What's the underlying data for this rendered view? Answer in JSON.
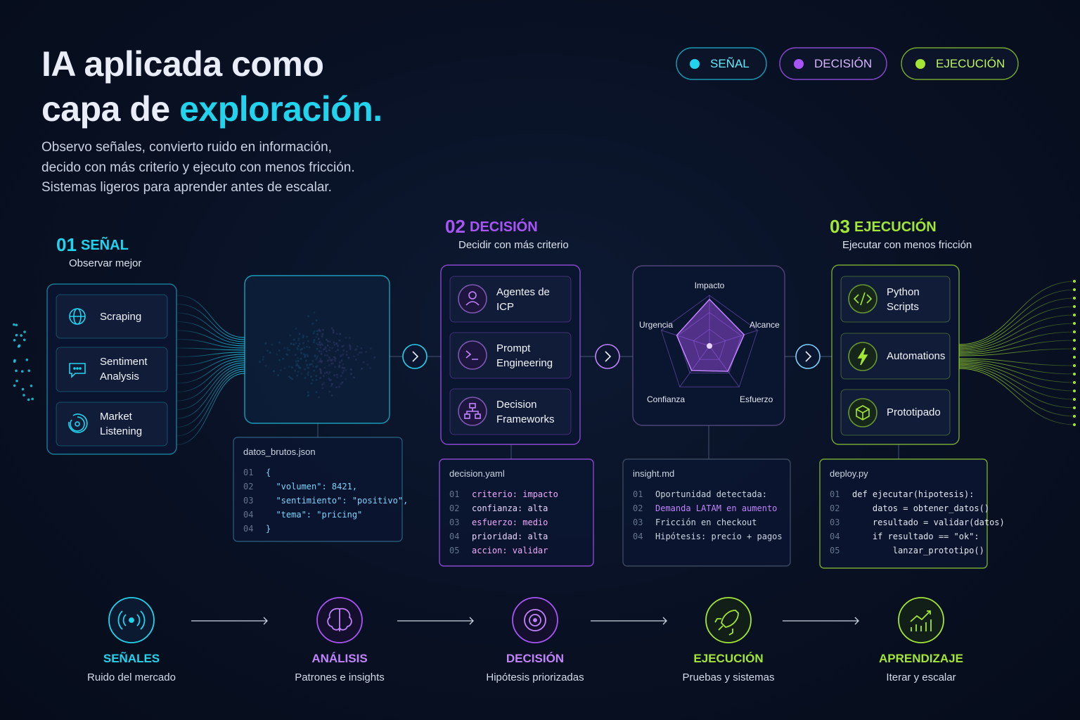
{
  "header": {
    "title_line1": "IA aplicada como",
    "title_line2": "capa de",
    "title_highlight": "exploración.",
    "subtitle": [
      "Observo señales, convierto ruido en información,",
      "decido con más criterio y ejecuto con menos fricción.",
      "Sistemas ligeros para aprender antes de escalar."
    ]
  },
  "legend": [
    "SEÑAL",
    "DECISIÓN",
    "EJECUCIÓN"
  ],
  "stages": [
    {
      "number": "01",
      "name": "SEÑAL",
      "caption": "Observar mejor",
      "cards": [
        "Scraping",
        "Sentiment Analysis",
        "Market Listening"
      ]
    },
    {
      "number": "02",
      "name": "DECISIÓN",
      "caption": "Decidir con más criterio",
      "cards": [
        "Agentes de ICP",
        "Prompt Engineering",
        "Decision Frameworks"
      ]
    },
    {
      "number": "03",
      "name": "EJECUCIÓN",
      "caption": "Ejecutar con menos fricción",
      "cards": [
        "Python Scripts",
        "Automations",
        "Prototipado"
      ]
    }
  ],
  "radar": {
    "labels": [
      "Impacto",
      "Alcance",
      "Esfuerzo",
      "Confianza",
      "Urgencia"
    ]
  },
  "panels": [
    {
      "file": "datos_brutos.json",
      "lines": [
        {
          "n": "01",
          "code": "{"
        },
        {
          "n": "02",
          "code": "  \"volumen\": 8421,"
        },
        {
          "n": "03",
          "code": "  \"sentimiento\": \"positivo\","
        },
        {
          "n": "04",
          "code": "  \"tema\": \"pricing\""
        },
        {
          "n": "04",
          "code": "}"
        }
      ]
    },
    {
      "file": "decision.yaml",
      "lines": [
        {
          "n": "01",
          "code": "criterio: impacto"
        },
        {
          "n": "02",
          "code": "confianza: alta"
        },
        {
          "n": "03",
          "code": "esfuerzo: medio"
        },
        {
          "n": "04",
          "code": "prioridad: alta"
        },
        {
          "n": "05",
          "code": "accion: validar"
        }
      ]
    },
    {
      "file": "insight.md",
      "lines": [
        {
          "n": "01",
          "code": "Oportunidad detectada:"
        },
        {
          "n": "02",
          "code": "Demanda LATAM en aumento"
        },
        {
          "n": "03",
          "code": "Fricción en checkout"
        },
        {
          "n": "04",
          "code": "Hipótesis: precio + pagos"
        }
      ]
    },
    {
      "file": "deploy.py",
      "lines": [
        {
          "n": "01",
          "code": "def ejecutar(hipotesis):"
        },
        {
          "n": "02",
          "code": "    datos = obtener_datos()"
        },
        {
          "n": "03",
          "code": "    resultado = validar(datos)"
        },
        {
          "n": "04",
          "code": "    if resultado == \"ok\":"
        },
        {
          "n": "05",
          "code": "        lanzar_prototipo()"
        }
      ]
    }
  ],
  "flow": [
    {
      "title": "SEÑALES",
      "caption": "Ruido del mercado"
    },
    {
      "title": "ANÁLISIS",
      "caption": "Patrones e insights"
    },
    {
      "title": "DECISIÓN",
      "caption": "Hipótesis priorizadas"
    },
    {
      "title": "EJECUCIÓN",
      "caption": "Pruebas y sistemas"
    },
    {
      "title": "APRENDIZAJE",
      "caption": "Iterar y escalar"
    }
  ]
}
